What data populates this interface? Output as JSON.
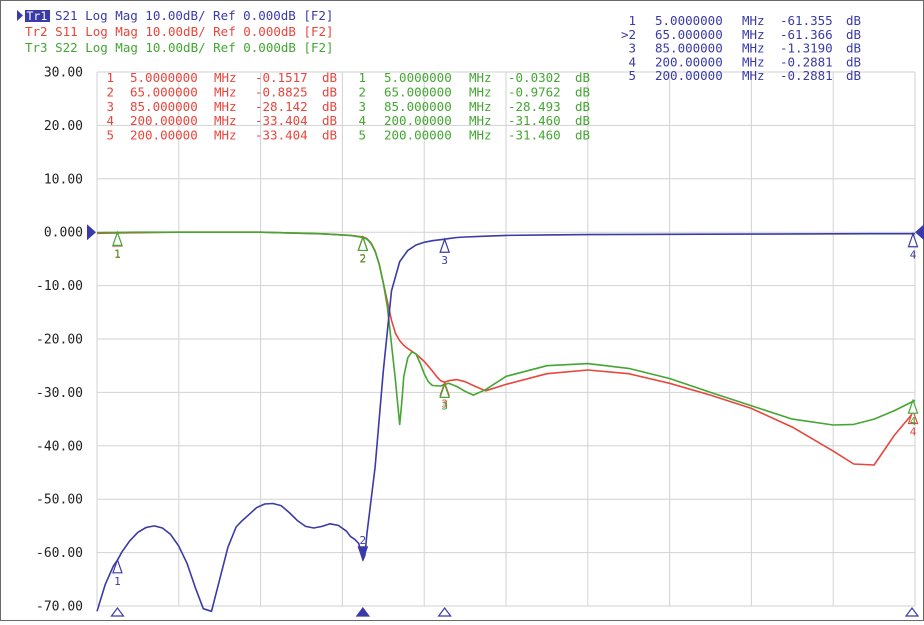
{
  "colors": {
    "s21": "#3a3aa8",
    "s11": "#e8463c",
    "s22": "#44a632",
    "grid": "#d2d2d2",
    "axis_text": "#222222"
  },
  "trace_headers": [
    {
      "text": "S21 Log Mag 10.00dB/ Ref 0.000dB [F2]",
      "badge": "Tr1",
      "color": "#3a3aa8"
    },
    {
      "text": "Tr2 S11 Log Mag 10.00dB/ Ref 0.000dB [F2]",
      "color": "#e8463c"
    },
    {
      "text": "Tr3 S22 Log Mag 10.00dB/ Ref 0.000dB [F2]",
      "color": "#44a632"
    }
  ],
  "marker_tables": {
    "s21": [
      {
        "id": "1",
        "freq": "5.0000000",
        "unit": "MHz",
        "value": "-61.355",
        "db": "dB"
      },
      {
        "id": ">2",
        "freq": "65.000000",
        "unit": "MHz",
        "value": "-61.366",
        "db": "dB"
      },
      {
        "id": "3",
        "freq": "85.000000",
        "unit": "MHz",
        "value": "-1.3190",
        "db": "dB"
      },
      {
        "id": "4",
        "freq": "200.00000",
        "unit": "MHz",
        "value": "-0.2881",
        "db": "dB"
      },
      {
        "id": "5",
        "freq": "200.00000",
        "unit": "MHz",
        "value": "-0.2881",
        "db": "dB"
      }
    ],
    "s11": [
      {
        "id": "1",
        "freq": "5.0000000",
        "unit": "MHz",
        "value": "-0.1517",
        "db": "dB"
      },
      {
        "id": "2",
        "freq": "65.000000",
        "unit": "MHz",
        "value": "-0.8825",
        "db": "dB"
      },
      {
        "id": "3",
        "freq": "85.000000",
        "unit": "MHz",
        "value": "-28.142",
        "db": "dB"
      },
      {
        "id": "4",
        "freq": "200.00000",
        "unit": "MHz",
        "value": "-33.404",
        "db": "dB"
      },
      {
        "id": "5",
        "freq": "200.00000",
        "unit": "MHz",
        "value": "-33.404",
        "db": "dB"
      }
    ],
    "s22": [
      {
        "id": "1",
        "freq": "5.0000000",
        "unit": "MHz",
        "value": "-0.0302",
        "db": "dB"
      },
      {
        "id": "2",
        "freq": "65.000000",
        "unit": "MHz",
        "value": "-0.9762",
        "db": "dB"
      },
      {
        "id": "3",
        "freq": "85.000000",
        "unit": "MHz",
        "value": "-28.493",
        "db": "dB"
      },
      {
        "id": "4",
        "freq": "200.00000",
        "unit": "MHz",
        "value": "-31.460",
        "db": "dB"
      },
      {
        "id": "5",
        "freq": "200.00000",
        "unit": "MHz",
        "value": "-31.460",
        "db": "dB"
      }
    ]
  },
  "chart_data": {
    "type": "line",
    "xlim": [
      0,
      200
    ],
    "ylim": [
      -70,
      30
    ],
    "yticks": [
      30,
      20,
      10,
      0,
      -10,
      -20,
      -30,
      -40,
      -50,
      -60,
      -70
    ],
    "ytick_labels": [
      "30.00",
      "20.00",
      "10.00",
      "0.000",
      "-10.00",
      "-20.00",
      "-30.00",
      "-40.00",
      "-50.00",
      "-60.00",
      "-70.00"
    ],
    "x_gridlines": 10,
    "reference_level": 0,
    "grid": true,
    "series": [
      {
        "key": "s21",
        "x": [
          0,
          2,
          4,
          5,
          6,
          8,
          10,
          12,
          14,
          16,
          18,
          20,
          22,
          24,
          26,
          28,
          30,
          32,
          34,
          35.5,
          37,
          39,
          41,
          43,
          45,
          47,
          49,
          51,
          53,
          55,
          57,
          59,
          61,
          62,
          63,
          64,
          65,
          65.5,
          66,
          68,
          70,
          72,
          74,
          76,
          78,
          80,
          82,
          84,
          85,
          86,
          88,
          90,
          95,
          100,
          110,
          120,
          140,
          160,
          180,
          190,
          200
        ],
        "y": [
          -71,
          -66,
          -62.5,
          -61.4,
          -60,
          -57.8,
          -56.2,
          -55.3,
          -55,
          -55.4,
          -56.6,
          -58.8,
          -62,
          -66.5,
          -70.5,
          -71,
          -65,
          -59,
          -55.2,
          -54,
          -53,
          -51.6,
          -50.9,
          -50.8,
          -51.2,
          -52.5,
          -54,
          -55.1,
          -55.4,
          -55.1,
          -54.6,
          -54.9,
          -56,
          -57,
          -57.5,
          -58.3,
          -61.4,
          -60.5,
          -56.5,
          -44,
          -26,
          -11,
          -5.5,
          -3.4,
          -2.4,
          -1.9,
          -1.6,
          -1.4,
          -1.32,
          -1.2,
          -1,
          -0.9,
          -0.75,
          -0.6,
          -0.5,
          -0.45,
          -0.4,
          -0.35,
          -0.3,
          -0.29,
          -0.29
        ]
      },
      {
        "key": "s11",
        "x": [
          0,
          5,
          10,
          20,
          40,
          55,
          62,
          65,
          66,
          67,
          68,
          69,
          70,
          71,
          72,
          73,
          74,
          75,
          76,
          78,
          80,
          82,
          83,
          84,
          85,
          86,
          88,
          90,
          92,
          95,
          100,
          110,
          120,
          130,
          140,
          150,
          160,
          170,
          180,
          185,
          190,
          195,
          200
        ],
        "y": [
          -0.2,
          -0.15,
          -0.1,
          0,
          0,
          -0.3,
          -0.6,
          -0.88,
          -1.2,
          -2,
          -3.5,
          -6,
          -9.5,
          -13,
          -16.5,
          -19,
          -20.3,
          -21.2,
          -21.8,
          -22.8,
          -24.2,
          -26,
          -27,
          -27.8,
          -28.1,
          -27.8,
          -27.6,
          -28,
          -28.7,
          -29.7,
          -28.5,
          -26.5,
          -25.8,
          -26.5,
          -28.3,
          -30.5,
          -33,
          -36.5,
          -41,
          -43.4,
          -43.6,
          -38,
          -33.4
        ]
      },
      {
        "key": "s22",
        "x": [
          0,
          5,
          10,
          20,
          40,
          55,
          62,
          65,
          66,
          67,
          68,
          69,
          70,
          71,
          72,
          73,
          73.5,
          74,
          74.5,
          75,
          76,
          77,
          78,
          79,
          80,
          81,
          82,
          84,
          85,
          86,
          88,
          90,
          92,
          95,
          100,
          110,
          120,
          130,
          140,
          150,
          160,
          170,
          180,
          185,
          190,
          195,
          200
        ],
        "y": [
          -0.05,
          -0.03,
          0,
          0,
          0,
          -0.3,
          -0.6,
          -0.98,
          -1.3,
          -2.1,
          -3.6,
          -6,
          -9.5,
          -14,
          -21,
          -28,
          -32,
          -36,
          -32,
          -27,
          -23.5,
          -22.4,
          -22.8,
          -24.5,
          -26.5,
          -28,
          -28.7,
          -28.8,
          -28.5,
          -28.3,
          -28.9,
          -29.8,
          -30.5,
          -29.5,
          -27,
          -25,
          -24.6,
          -25.5,
          -27.4,
          -30,
          -32.5,
          -35,
          -36.1,
          -36,
          -35,
          -33.4,
          -31.5
        ]
      }
    ],
    "markers": {
      "s21": [
        {
          "id": "1",
          "x": 5,
          "y": -61.355
        },
        {
          "id": "2",
          "x": 65,
          "y": -61.366,
          "active": true
        },
        {
          "id": "3",
          "x": 85,
          "y": -1.319
        },
        {
          "id": "4",
          "x": 200,
          "y": -0.2881
        },
        {
          "id": "5",
          "x": 200,
          "y": -0.2881
        }
      ],
      "s11": [
        {
          "id": "1",
          "x": 5,
          "y": -0.1517
        },
        {
          "id": "2",
          "x": 65,
          "y": -0.8825
        },
        {
          "id": "3",
          "x": 85,
          "y": -28.142
        },
        {
          "id": "4",
          "x": 200,
          "y": -33.404
        }
      ],
      "s22": [
        {
          "id": "1",
          "x": 5,
          "y": -0.0302
        },
        {
          "id": "2",
          "x": 65,
          "y": -0.9762
        },
        {
          "id": "3",
          "x": 85,
          "y": -28.493
        },
        {
          "id": "4",
          "x": 200,
          "y": -31.46
        }
      ]
    },
    "stimulus_markers_x": [
      5,
      65,
      85,
      200
    ],
    "active_stimulus_marker_x": 65
  }
}
